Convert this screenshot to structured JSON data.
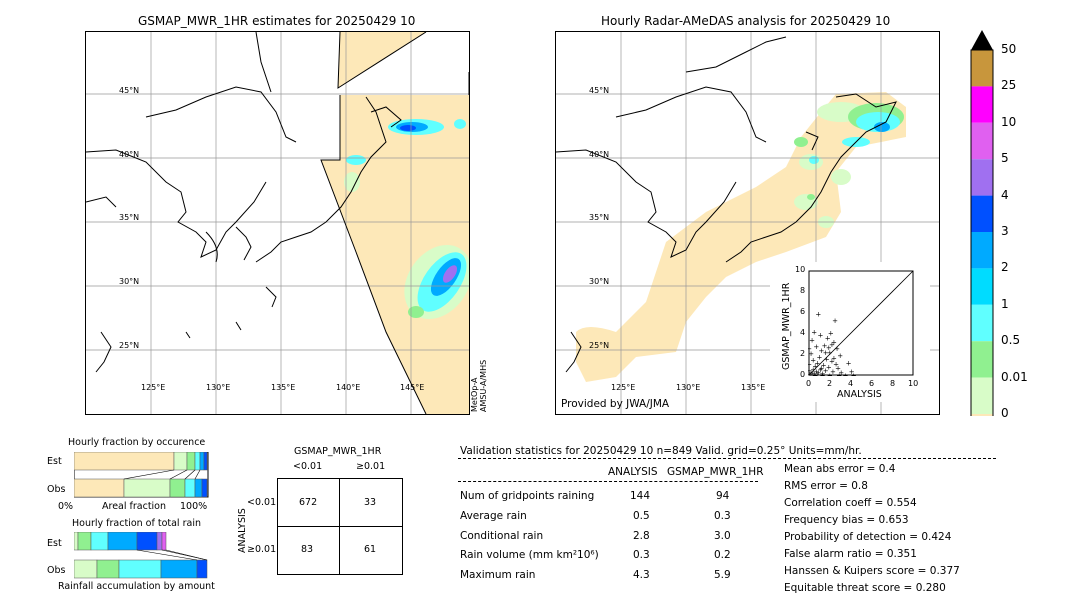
{
  "left_map": {
    "title": "GSMAP_MWR_1HR estimates for 20250429 10",
    "lat_labels": [
      "45°N",
      "40°N",
      "35°N",
      "30°N",
      "25°N"
    ],
    "lon_labels": [
      "125°E",
      "130°E",
      "135°E",
      "140°E",
      "145°E"
    ],
    "sensor_note_1": "MetOp-A",
    "sensor_note_2": "AMSU-A/MHS"
  },
  "right_map": {
    "title": "Hourly Radar-AMeDAS analysis for 20250429 10",
    "lat_labels": [
      "45°N",
      "40°N",
      "35°N",
      "30°N",
      "25°N"
    ],
    "lon_labels": [
      "125°E",
      "130°E",
      "135°E"
    ],
    "provider": "Provided by JWA/JMA"
  },
  "colorbar": {
    "labels": [
      "50",
      "25",
      "10",
      "5",
      "4",
      "3",
      "2",
      "1",
      "0.5",
      "0.01",
      "0"
    ],
    "colors": [
      "#c8963c",
      "#ff00ff",
      "#e060f0",
      "#a070f0",
      "#0050ff",
      "#00aaff",
      "#00dcff",
      "#60ffff",
      "#90f090",
      "#d8fcc8",
      "#fde8b8"
    ]
  },
  "scatter": {
    "ylabel": "GSMAP_MWR_1HR",
    "xlabel": "ANALYSIS",
    "ticks": [
      "0",
      "2",
      "4",
      "6",
      "8",
      "10"
    ]
  },
  "occurrence_chart": {
    "title": "Hourly fraction by occurence",
    "row_labels": [
      "Est",
      "Obs"
    ],
    "axis_left": "0%",
    "axis_mid": "Areal fraction",
    "axis_right": "100%"
  },
  "total_rain_chart": {
    "title": "Hourly fraction of total rain",
    "row_labels": [
      "Est",
      "Obs"
    ],
    "footer": "Rainfall accumulation by amount"
  },
  "contingency": {
    "title": "GSMAP_MWR_1HR",
    "col_headers": [
      "<0.01",
      "≥0.01"
    ],
    "row_headers": [
      "<0.01",
      "≥0.01"
    ],
    "side_label": "ANALYSIS",
    "cells": [
      "672",
      "33",
      "83",
      "61"
    ]
  },
  "validation": {
    "header": "Validation statistics for 20250429 10  n=849 Valid. grid=0.25° Units=mm/hr.",
    "col_analysis": "ANALYSIS",
    "col_gsmap": "GSMAP_MWR_1HR",
    "rows": [
      {
        "label": "Num of gridpoints raining",
        "analysis": "144",
        "gsmap": "94"
      },
      {
        "label": "Average rain",
        "analysis": "0.5",
        "gsmap": "0.3"
      },
      {
        "label": "Conditional rain",
        "analysis": "2.8",
        "gsmap": "3.0"
      },
      {
        "label": "Rain volume (mm km²10⁶)",
        "analysis": "0.3",
        "gsmap": "0.2"
      },
      {
        "label": "Maximum rain",
        "analysis": "4.3",
        "gsmap": "5.9"
      }
    ],
    "scores": [
      "Mean abs error =    0.4",
      "RMS error =    0.8",
      "Correlation coeff =  0.554",
      "Frequency bias =  0.653",
      "Probability of detection =  0.424",
      "False alarm ratio =  0.351",
      "Hanssen & Kuipers score =  0.377",
      "Equitable threat score =  0.280"
    ]
  },
  "chart_data": {
    "type": "scatter",
    "xlabel": "ANALYSIS",
    "ylabel": "GSMAP_MWR_1HR",
    "xlim": [
      0,
      10
    ],
    "ylim": [
      0,
      10
    ],
    "points": [
      [
        0.1,
        0.1
      ],
      [
        0.2,
        0.3
      ],
      [
        0.3,
        0.1
      ],
      [
        0.4,
        0.6
      ],
      [
        0.5,
        0.2
      ],
      [
        0.6,
        0.9
      ],
      [
        0.7,
        0.4
      ],
      [
        0.8,
        1.2
      ],
      [
        0.9,
        0.3
      ],
      [
        1.0,
        1.8
      ],
      [
        1.1,
        0.6
      ],
      [
        1.2,
        2.4
      ],
      [
        1.3,
        0.2
      ],
      [
        1.4,
        1.0
      ],
      [
        1.5,
        2.9
      ],
      [
        1.6,
        0.5
      ],
      [
        1.7,
        1.6
      ],
      [
        1.8,
        3.6
      ],
      [
        1.9,
        0.8
      ],
      [
        2.0,
        2.2
      ],
      [
        2.1,
        4.1
      ],
      [
        2.2,
        1.4
      ],
      [
        2.3,
        0.4
      ],
      [
        2.4,
        3.2
      ],
      [
        2.5,
        5.3
      ],
      [
        2.6,
        1.1
      ],
      [
        2.7,
        2.6
      ],
      [
        2.8,
        0.7
      ],
      [
        3.0,
        1.9
      ],
      [
        3.1,
        0.3
      ],
      [
        0.2,
        2.1
      ],
      [
        0.3,
        3.4
      ],
      [
        0.5,
        4.2
      ],
      [
        0.7,
        2.8
      ],
      [
        0.9,
        5.9
      ],
      [
        1.1,
        3.9
      ],
      [
        0.4,
        1.5
      ],
      [
        0.6,
        0.0
      ],
      [
        1.3,
        0.0
      ],
      [
        2.0,
        0.0
      ],
      [
        2.9,
        0.0
      ],
      [
        3.5,
        0.0
      ],
      [
        4.3,
        0.0
      ],
      [
        0.0,
        1.1
      ],
      [
        0.0,
        2.6
      ],
      [
        0.0,
        0.5
      ],
      [
        1.9,
        2.7
      ],
      [
        2.4,
        1.7
      ],
      [
        1.6,
        2.2
      ],
      [
        3.8,
        1.2
      ],
      [
        4.1,
        0.4
      ],
      [
        0.8,
        0.1
      ],
      [
        1.2,
        0.7
      ],
      [
        2.2,
        3.0
      ]
    ]
  }
}
